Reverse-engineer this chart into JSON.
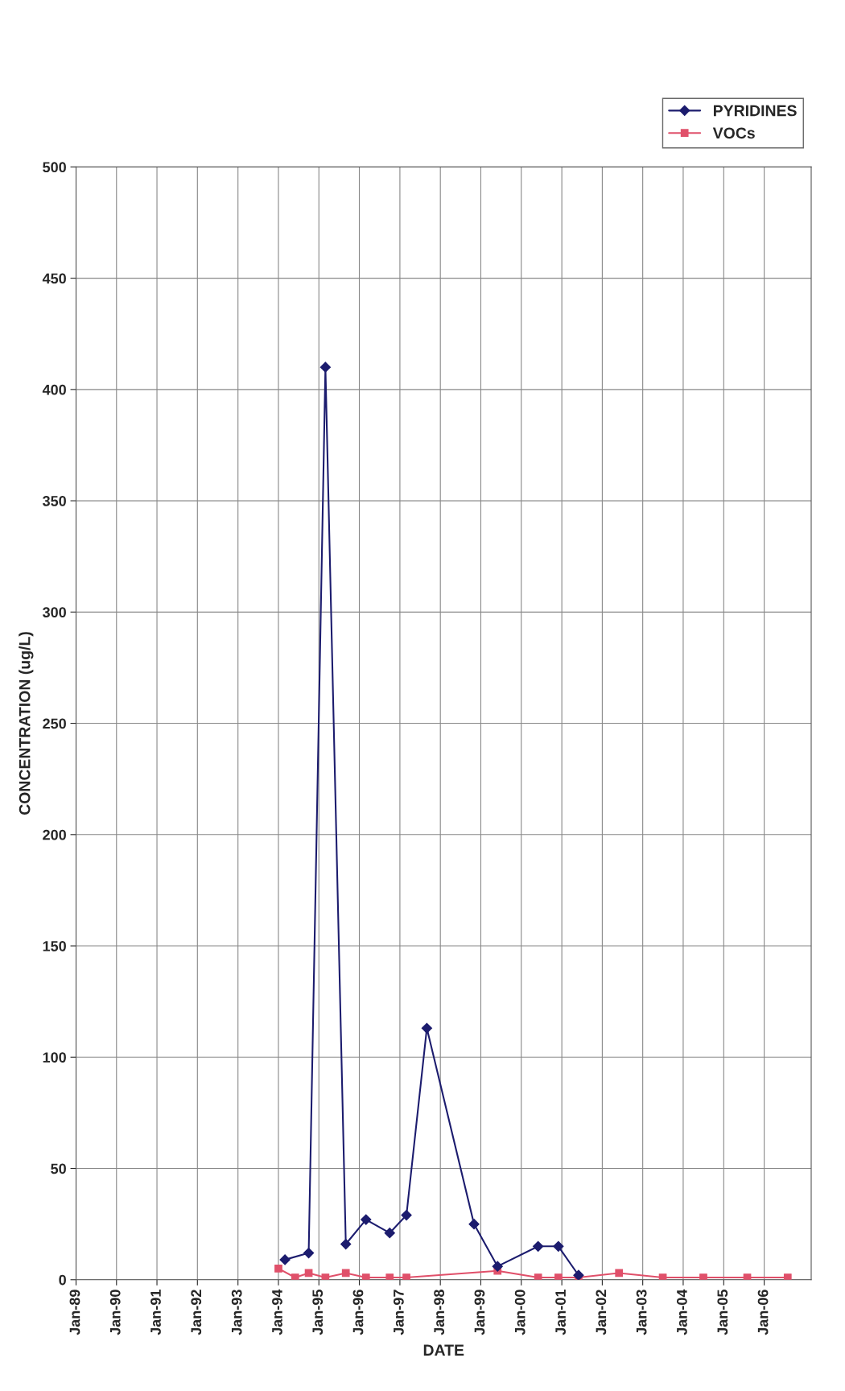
{
  "chart_data": {
    "type": "line",
    "xlabel": "DATE",
    "ylabel": "CONCENTRATION (ug/L)",
    "xlim": [
      "1989-01-01",
      "2007-03-01"
    ],
    "xticks": [
      {
        "value": "1989-01-01",
        "label": "Jan-89"
      },
      {
        "value": "1990-01-01",
        "label": "Jan-90"
      },
      {
        "value": "1991-01-01",
        "label": "Jan-91"
      },
      {
        "value": "1992-01-01",
        "label": "Jan-92"
      },
      {
        "value": "1993-01-01",
        "label": "Jan-93"
      },
      {
        "value": "1994-01-01",
        "label": "Jan-94"
      },
      {
        "value": "1995-01-01",
        "label": "Jan-95"
      },
      {
        "value": "1996-01-01",
        "label": "Jan-96"
      },
      {
        "value": "1997-01-01",
        "label": "Jan-97"
      },
      {
        "value": "1998-01-01",
        "label": "Jan-98"
      },
      {
        "value": "1999-01-01",
        "label": "Jan-99"
      },
      {
        "value": "2000-01-01",
        "label": "Jan-00"
      },
      {
        "value": "2001-01-01",
        "label": "Jan-01"
      },
      {
        "value": "2002-01-01",
        "label": "Jan-02"
      },
      {
        "value": "2003-01-01",
        "label": "Jan-03"
      },
      {
        "value": "2004-01-01",
        "label": "Jan-04"
      },
      {
        "value": "2005-01-01",
        "label": "Jan-05"
      },
      {
        "value": "2006-01-01",
        "label": "Jan-06"
      }
    ],
    "ylim": [
      0,
      500
    ],
    "yticks": [
      0,
      50,
      100,
      150,
      200,
      250,
      300,
      350,
      400,
      450,
      500
    ],
    "grid": true,
    "legend": "top right",
    "series": [
      {
        "name": "PYRIDINES",
        "color": "#1c1c6e",
        "marker": "diamond",
        "x": [
          "1994-03",
          "1994-10",
          "1995-03",
          "1995-09",
          "1996-03",
          "1996-10",
          "1997-03",
          "1997-09",
          "1998-11",
          "1999-06",
          "2000-06",
          "2000-12",
          "2001-06"
        ],
        "values": [
          9,
          12,
          410,
          16,
          27,
          21,
          29,
          113,
          25,
          6,
          15,
          15,
          2
        ]
      },
      {
        "name": "VOCs",
        "color": "#e0506a",
        "marker": "square",
        "x": [
          "1994-01",
          "1994-06",
          "1994-10",
          "1995-03",
          "1995-09",
          "1996-03",
          "1996-10",
          "1997-03",
          "1999-06",
          "2000-06",
          "2000-12",
          "2001-06",
          "2002-06",
          "2003-07",
          "2004-07",
          "2005-08",
          "2006-08"
        ],
        "values": [
          5,
          1,
          3,
          1,
          3,
          1,
          1,
          1,
          4,
          1,
          1,
          1,
          3,
          1,
          1,
          1,
          1
        ]
      }
    ]
  }
}
